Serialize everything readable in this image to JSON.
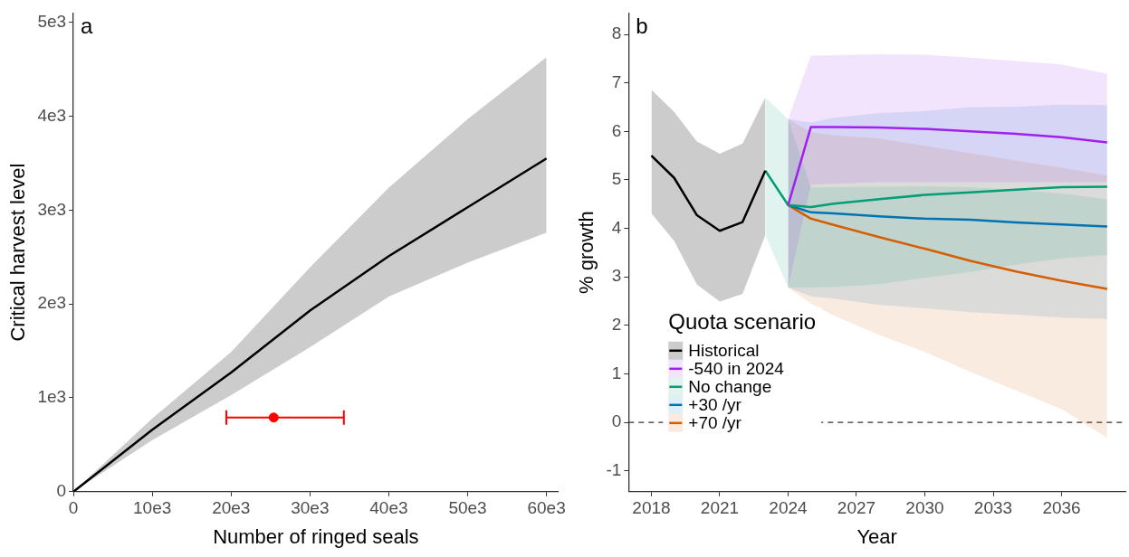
{
  "chart_data": [
    {
      "type": "line",
      "title": "a",
      "xlabel": "Number of ringed seals",
      "ylabel": "Critical harvest level",
      "xlim": [
        0,
        61500
      ],
      "ylim": [
        0,
        5100
      ],
      "xticks": [
        0,
        {
          "value": 10000,
          "label": "10e3"
        },
        {
          "value": 20000,
          "label": "20e3"
        },
        {
          "value": 30000,
          "label": "30e3"
        },
        {
          "value": 40000,
          "label": "40e3"
        },
        {
          "value": 50000,
          "label": "50e3"
        },
        {
          "value": 60000,
          "label": "60e3"
        }
      ],
      "yticks": [
        0,
        {
          "value": 1000,
          "label": "1e3"
        },
        {
          "value": 2000,
          "label": "2e3"
        },
        {
          "value": 3000,
          "label": "3e3"
        },
        {
          "value": 4000,
          "label": "4e3"
        },
        {
          "value": 5000,
          "label": "5e3"
        }
      ],
      "grid": false,
      "legend": false,
      "series": [
        {
          "color": "#000000",
          "x": [
            0,
            10000,
            20000,
            30000,
            40000,
            50000,
            60000
          ],
          "values": [
            0,
            660,
            1270,
            1930,
            2510,
            3030,
            3550
          ],
          "lower": [
            0,
            550,
            1030,
            1540,
            2080,
            2440,
            2760
          ],
          "upper": [
            0,
            780,
            1490,
            2390,
            3240,
            3970,
            4630
          ]
        },
        {
          "type": "scatter",
          "marker": "circle",
          "color": "#ff0000",
          "x": [
            25400
          ],
          "values": [
            790
          ],
          "xerrors": [
            [
              19400,
              34300
            ]
          ]
        }
      ]
    },
    {
      "type": "line",
      "title": "b",
      "xlabel": "Year",
      "ylabel": "% growth",
      "legend_title": "Quota scenario",
      "legend": "bottom left",
      "xlim": [
        2017,
        2038.8
      ],
      "ylim": [
        -1.43,
        8.44
      ],
      "xticks": [
        2018,
        2021,
        2024,
        2027,
        2030,
        2033,
        2036
      ],
      "yticks": [
        -1,
        0,
        1,
        2,
        3,
        4,
        5,
        6,
        7,
        8
      ],
      "grid": false,
      "ref_lines": [
        {
          "axis": "y",
          "value": 0,
          "line_style": "dashed",
          "color": "#333333"
        }
      ],
      "series": [
        {
          "name": "Historical",
          "color": "#000000",
          "x": [
            2018,
            2019,
            2020,
            2021,
            2022,
            2023
          ],
          "values": [
            5.5,
            5.04,
            4.27,
            3.95,
            4.13,
            5.19
          ],
          "lower": [
            4.31,
            3.74,
            2.84,
            2.49,
            2.65,
            3.86
          ],
          "upper": [
            6.86,
            6.4,
            5.79,
            5.54,
            5.75,
            6.7
          ]
        },
        {
          "name": "-540 in 2024",
          "color": "#a020f0",
          "x": [
            2024,
            2025,
            2026,
            2028,
            2030,
            2032,
            2034,
            2036,
            2038
          ],
          "values": [
            4.48,
            6.09,
            6.09,
            6.08,
            6.05,
            6.0,
            5.95,
            5.88,
            5.77
          ],
          "lower": [
            2.78,
            4.9,
            4.92,
            4.95,
            4.95,
            4.95,
            4.95,
            4.95,
            4.95
          ],
          "upper": [
            6.25,
            7.56,
            7.57,
            7.59,
            7.58,
            7.52,
            7.45,
            7.38,
            7.19
          ]
        },
        {
          "name": "No change",
          "color": "#009e73",
          "x": [
            2023,
            2024,
            2025,
            2026,
            2028,
            2030,
            2032,
            2034,
            2036,
            2038
          ],
          "values": [
            5.19,
            4.48,
            4.44,
            4.51,
            4.6,
            4.69,
            4.74,
            4.8,
            4.85,
            4.86
          ],
          "lower": [
            3.86,
            2.78,
            2.78,
            2.79,
            2.85,
            2.98,
            3.1,
            3.25,
            3.38,
            3.45
          ],
          "upper": [
            6.7,
            6.25,
            4.84,
            4.85,
            4.86,
            4.87,
            4.85,
            4.8,
            4.72,
            4.6
          ]
        },
        {
          "name": "+30 /yr",
          "color": "#0072b2",
          "x": [
            2024,
            2025,
            2026,
            2028,
            2030,
            2032,
            2034,
            2036,
            2038
          ],
          "values": [
            4.48,
            4.33,
            4.31,
            4.25,
            4.2,
            4.18,
            4.12,
            4.08,
            4.04
          ],
          "lower": [
            2.78,
            2.6,
            2.55,
            2.42,
            2.35,
            2.27,
            2.22,
            2.16,
            2.13
          ],
          "upper": [
            6.25,
            6.18,
            6.28,
            6.38,
            6.42,
            6.5,
            6.51,
            6.55,
            6.54
          ]
        },
        {
          "name": "+70 /yr",
          "color": "#d55e00",
          "x": [
            2024,
            2025,
            2026,
            2028,
            2030,
            2032,
            2034,
            2036,
            2038
          ],
          "values": [
            4.48,
            4.2,
            4.07,
            3.82,
            3.58,
            3.33,
            3.11,
            2.92,
            2.75
          ],
          "lower": [
            2.78,
            2.45,
            2.2,
            1.8,
            1.45,
            1.04,
            0.66,
            0.27,
            -0.32
          ],
          "upper": [
            6.25,
            5.98,
            5.92,
            5.85,
            5.7,
            5.55,
            5.4,
            5.25,
            5.09
          ]
        }
      ]
    }
  ]
}
